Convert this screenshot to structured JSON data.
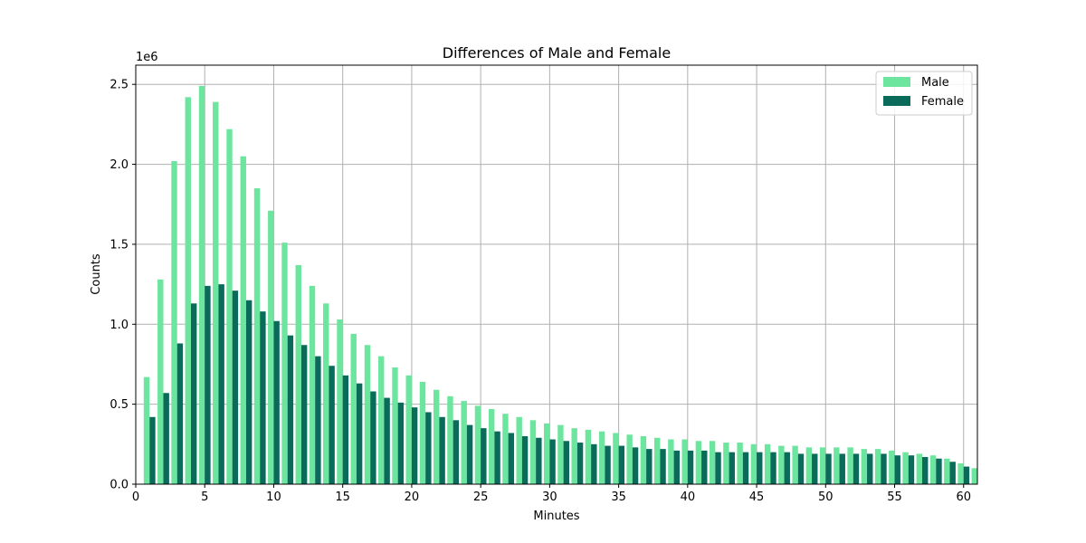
{
  "chart_data": {
    "type": "bar",
    "title": "Differences of Male and Female",
    "xlabel": "Minutes",
    "ylabel": "Counts",
    "y_offset_label": "1e6",
    "xlim": [
      0,
      61
    ],
    "ylim": [
      0,
      2.62
    ],
    "x_ticks": [
      0,
      5,
      10,
      15,
      20,
      25,
      30,
      35,
      40,
      45,
      50,
      55,
      60
    ],
    "y_ticks": [
      0.0,
      0.5,
      1.0,
      1.5,
      2.0,
      2.5
    ],
    "y_tick_labels": [
      "0.0",
      "0.5",
      "1.0",
      "1.5",
      "2.0",
      "2.5"
    ],
    "grid": true,
    "legend_position": "top-right",
    "categories": [
      1,
      2,
      3,
      4,
      5,
      6,
      7,
      8,
      9,
      10,
      11,
      12,
      13,
      14,
      15,
      16,
      17,
      18,
      19,
      20,
      21,
      22,
      23,
      24,
      25,
      26,
      27,
      28,
      29,
      30,
      31,
      32,
      33,
      34,
      35,
      36,
      37,
      38,
      39,
      40,
      41,
      42,
      43,
      44,
      45,
      46,
      47,
      48,
      49,
      50,
      51,
      52,
      53,
      54,
      55,
      56,
      57,
      58,
      59,
      60,
      61
    ],
    "series": [
      {
        "name": "Male",
        "color": "#6ce69e",
        "values": [
          0.67,
          1.28,
          2.02,
          2.42,
          2.49,
          2.39,
          2.22,
          2.05,
          1.85,
          1.71,
          1.51,
          1.37,
          1.24,
          1.13,
          1.03,
          0.94,
          0.87,
          0.8,
          0.73,
          0.68,
          0.64,
          0.59,
          0.55,
          0.52,
          0.49,
          0.47,
          0.44,
          0.42,
          0.4,
          0.38,
          0.37,
          0.35,
          0.34,
          0.33,
          0.32,
          0.31,
          0.3,
          0.29,
          0.28,
          0.28,
          0.27,
          0.27,
          0.26,
          0.26,
          0.25,
          0.25,
          0.24,
          0.24,
          0.23,
          0.23,
          0.23,
          0.23,
          0.22,
          0.22,
          0.21,
          0.2,
          0.19,
          0.18,
          0.16,
          0.13,
          0.1
        ]
      },
      {
        "name": "Female",
        "color": "#0b6b5b",
        "values": [
          0.42,
          0.57,
          0.88,
          1.13,
          1.24,
          1.25,
          1.21,
          1.15,
          1.08,
          1.02,
          0.93,
          0.87,
          0.8,
          0.74,
          0.68,
          0.63,
          0.58,
          0.54,
          0.51,
          0.48,
          0.45,
          0.42,
          0.4,
          0.37,
          0.35,
          0.33,
          0.32,
          0.3,
          0.29,
          0.28,
          0.27,
          0.26,
          0.25,
          0.24,
          0.24,
          0.23,
          0.22,
          0.22,
          0.21,
          0.21,
          0.21,
          0.2,
          0.2,
          0.2,
          0.2,
          0.2,
          0.2,
          0.19,
          0.19,
          0.19,
          0.19,
          0.19,
          0.19,
          0.19,
          0.18,
          0.18,
          0.17,
          0.16,
          0.14,
          0.11,
          0.1
        ]
      }
    ]
  }
}
